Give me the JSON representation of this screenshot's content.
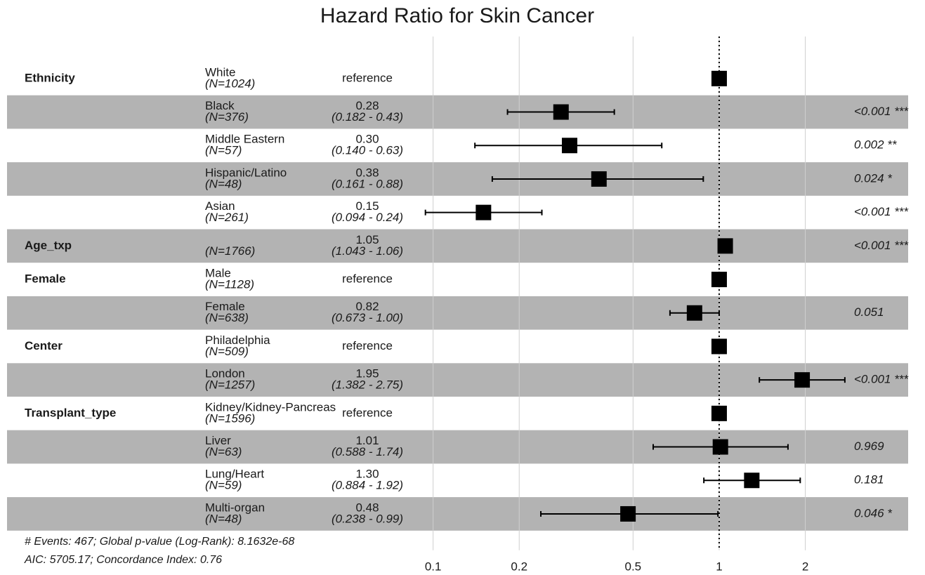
{
  "chart_data": {
    "type": "forest",
    "title": "Hazard Ratio for Skin Cancer",
    "groups": [
      "Ethnicity",
      null,
      null,
      null,
      null,
      "Age_txp",
      "Female",
      null,
      "Center",
      null,
      "Transplant_type",
      null,
      null,
      null
    ],
    "categories": [
      "White",
      "Black",
      "Middle Eastern",
      "Hispanic/Latino",
      "Asian",
      null,
      "Male",
      "Female",
      "Philadelphia",
      "London",
      "Kidney/Kidney-Pancreas",
      "Liver",
      "Lung/Heart",
      "Multi-organ"
    ],
    "n_labels": [
      "(N=1024)",
      "(N=376)",
      "(N=57)",
      "(N=48)",
      "(N=261)",
      "(N=1766)",
      "(N=1128)",
      "(N=638)",
      "(N=509)",
      "(N=1257)",
      "(N=1596)",
      "(N=63)",
      "(N=59)",
      "(N=48)"
    ],
    "values": [
      1,
      0.28,
      0.3,
      0.38,
      0.15,
      1.05,
      1,
      0.82,
      1,
      1.95,
      1,
      1.01,
      1.3,
      0.48
    ],
    "value_labels": [
      "reference",
      "0.28",
      "0.30",
      "0.38",
      "0.15",
      "1.05",
      "reference",
      "0.82",
      "reference",
      "1.95",
      "reference",
      "1.01",
      "1.30",
      "0.48"
    ],
    "lower": [
      null,
      0.182,
      0.14,
      0.161,
      0.094,
      1.043,
      null,
      0.673,
      null,
      1.382,
      null,
      0.588,
      0.884,
      0.238
    ],
    "upper": [
      null,
      0.43,
      0.63,
      0.88,
      0.24,
      1.06,
      null,
      1.0,
      null,
      2.75,
      null,
      1.74,
      1.92,
      0.99
    ],
    "ci_labels": [
      null,
      "(0.182 - 0.43)",
      "(0.140 - 0.63)",
      "(0.161 - 0.88)",
      "(0.094 - 0.24)",
      "(1.043 - 1.06)",
      null,
      "(0.673 - 1.00)",
      null,
      "(1.382 - 2.75)",
      null,
      "(0.588 - 1.74)",
      "(0.884 - 1.92)",
      "(0.238 - 0.99)"
    ],
    "p_labels": [
      null,
      "<0.001 ***",
      "0.002 **",
      "0.024 *",
      "<0.001 ***",
      "<0.001 ***",
      null,
      "0.051",
      null,
      "<0.001 ***",
      null,
      "0.969",
      "0.181",
      "0.046 *"
    ],
    "footnotes": [
      "# Events: 467; Global p-value (Log-Rank): 8.1632e-68",
      "AIC: 5705.17; Concordance Index: 0.76"
    ],
    "xlim": [
      0.09,
      4.5
    ],
    "xticks": [
      0.1,
      0.2,
      0.5,
      1,
      2
    ],
    "log_x": true,
    "grid": true,
    "reference_line": 1,
    "color": "#000000",
    "stripe_color": "#b3b3b3"
  }
}
